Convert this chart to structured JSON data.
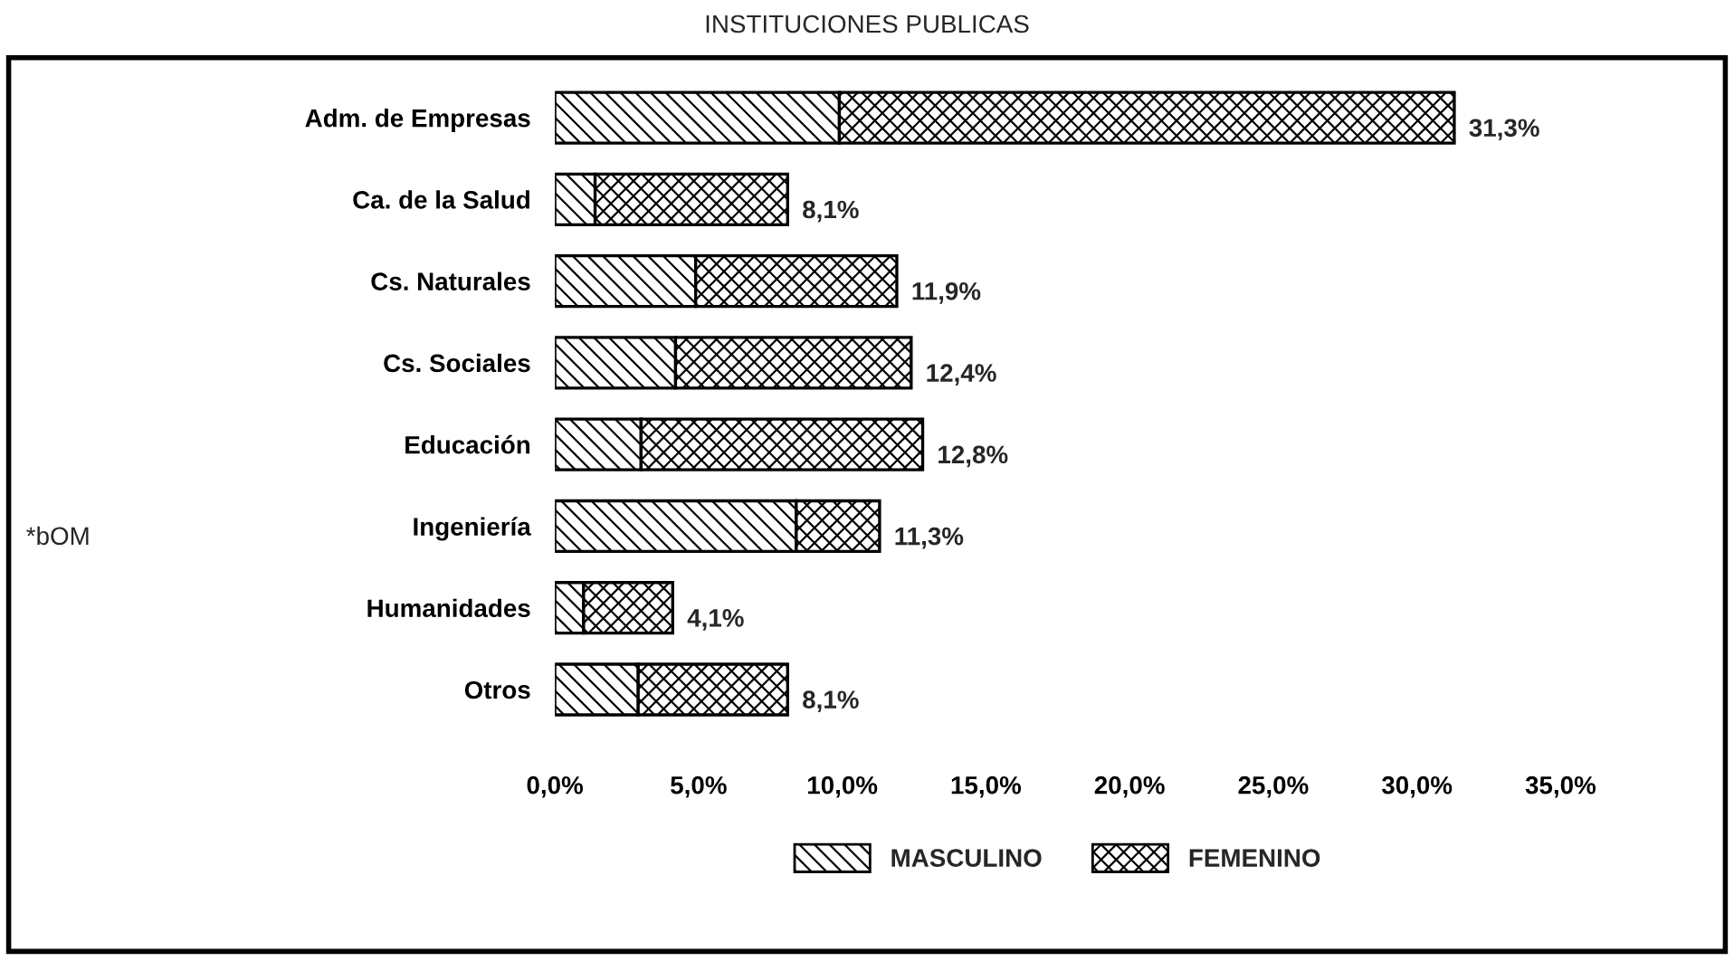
{
  "chart_data": {
    "type": "bar",
    "orientation": "horizontal",
    "stacked": true,
    "title": "INSTITUCIONES PUBLICAS",
    "categories": [
      "Adm. de Empresas",
      "Ca. de la Salud",
      "Cs. Naturales",
      "Cs. Sociales",
      "Educación",
      "Ingeniería",
      "Humanidades",
      "Otros"
    ],
    "series": [
      {
        "name": "MASCULINO",
        "color": "#000000",
        "values": [
          9.9,
          1.4,
          4.9,
          4.2,
          3.0,
          8.4,
          1.0,
          2.9
        ]
      },
      {
        "name": "FEMENINO",
        "color": "#000000",
        "values": [
          21.4,
          6.7,
          7.0,
          8.2,
          9.8,
          2.9,
          3.1,
          5.2
        ]
      }
    ],
    "totals": [
      "31,3%",
      "8,1%",
      "11,9%",
      "12,4%",
      "12,8%",
      "11,3%",
      "4,1%",
      "8,1%"
    ],
    "xlim": [
      0,
      35
    ],
    "xticks": [
      {
        "value": 0,
        "label": "0,0%"
      },
      {
        "value": 5,
        "label": "5,0%"
      },
      {
        "value": 10,
        "label": "10,0%"
      },
      {
        "value": 15,
        "label": "15,0%"
      },
      {
        "value": 20,
        "label": "20,0%"
      },
      {
        "value": 25,
        "label": "25,0%"
      },
      {
        "value": 30,
        "label": "30,0%"
      },
      {
        "value": 35,
        "label": "35,0%"
      }
    ],
    "annotations": [
      "*bOM"
    ],
    "grid": false,
    "legend": "bottom"
  }
}
